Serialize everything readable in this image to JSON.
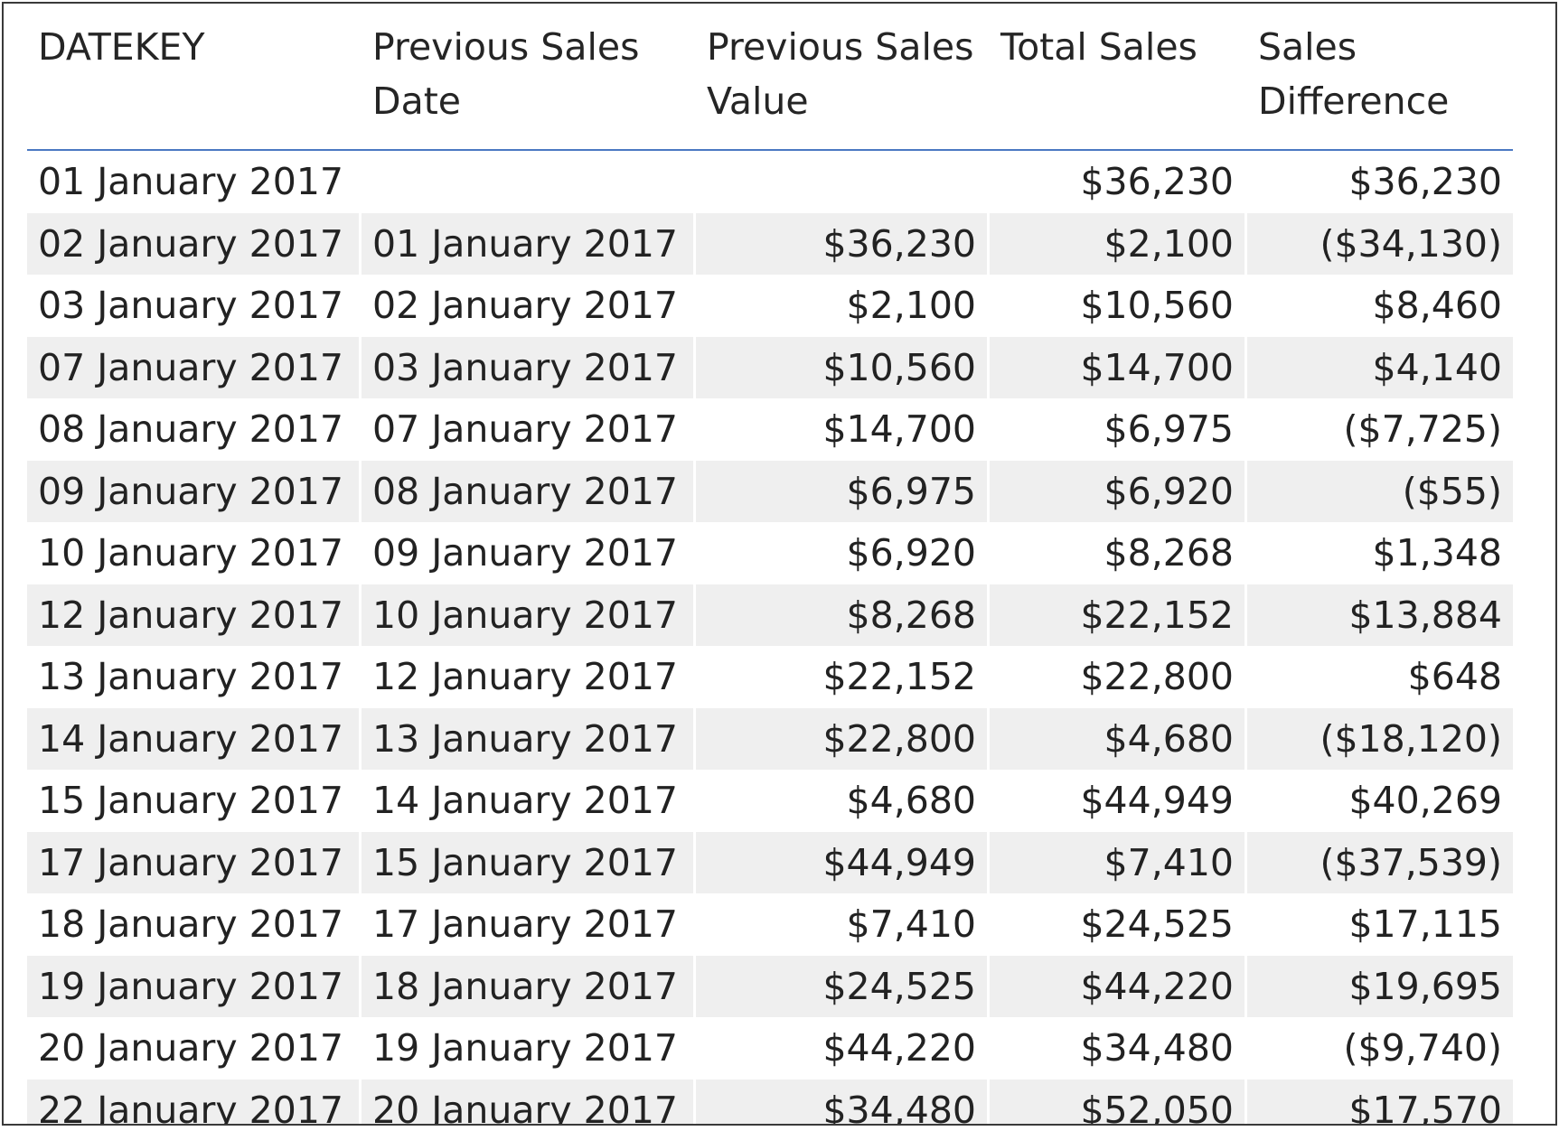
{
  "table": {
    "columns": [
      "DATEKEY",
      "Previous Sales Date",
      "Previous Sales Value",
      "Total Sales",
      "Sales Difference"
    ],
    "rows": [
      [
        "01 January 2017",
        "",
        "",
        "$36,230",
        "$36,230"
      ],
      [
        "02 January 2017",
        "01 January 2017",
        "$36,230",
        "$2,100",
        "($34,130)"
      ],
      [
        "03 January 2017",
        "02 January 2017",
        "$2,100",
        "$10,560",
        "$8,460"
      ],
      [
        "07 January 2017",
        "03 January 2017",
        "$10,560",
        "$14,700",
        "$4,140"
      ],
      [
        "08 January 2017",
        "07 January 2017",
        "$14,700",
        "$6,975",
        "($7,725)"
      ],
      [
        "09 January 2017",
        "08 January 2017",
        "$6,975",
        "$6,920",
        "($55)"
      ],
      [
        "10 January 2017",
        "09 January 2017",
        "$6,920",
        "$8,268",
        "$1,348"
      ],
      [
        "12 January 2017",
        "10 January 2017",
        "$8,268",
        "$22,152",
        "$13,884"
      ],
      [
        "13 January 2017",
        "12 January 2017",
        "$22,152",
        "$22,800",
        "$648"
      ],
      [
        "14 January 2017",
        "13 January 2017",
        "$22,800",
        "$4,680",
        "($18,120)"
      ],
      [
        "15 January 2017",
        "14 January 2017",
        "$4,680",
        "$44,949",
        "$40,269"
      ],
      [
        "17 January 2017",
        "15 January 2017",
        "$44,949",
        "$7,410",
        "($37,539)"
      ],
      [
        "18 January 2017",
        "17 January 2017",
        "$7,410",
        "$24,525",
        "$17,115"
      ],
      [
        "19 January 2017",
        "18 January 2017",
        "$24,525",
        "$44,220",
        "$19,695"
      ],
      [
        "20 January 2017",
        "19 January 2017",
        "$44,220",
        "$34,480",
        "($9,740)"
      ],
      [
        "22 January 2017",
        "20 January 2017",
        "$34,480",
        "$52,050",
        "$17,570"
      ]
    ]
  },
  "colors": {
    "header_rule": "#4a78c2",
    "alt_row": "#efefef",
    "border": "#3a3a3a"
  }
}
